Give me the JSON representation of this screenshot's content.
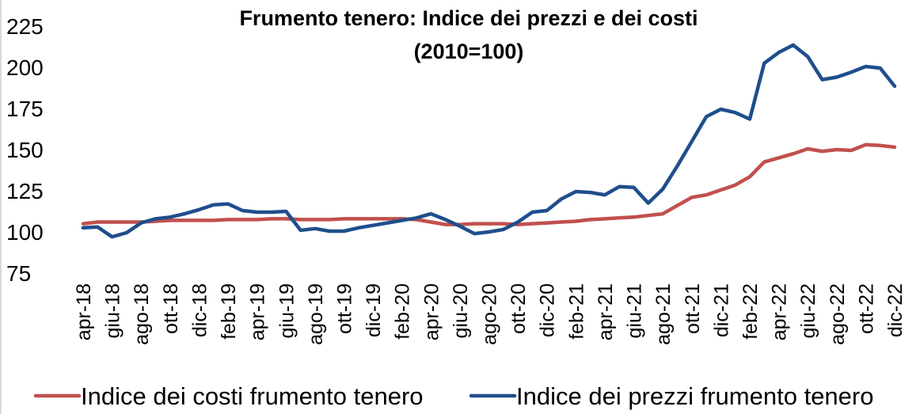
{
  "chart_data": {
    "type": "line",
    "title": "Frumento tenero: Indice dei prezzi e dei costi",
    "subtitle": "(2010=100)",
    "categories": [
      "apr-18",
      null,
      "giu-18",
      null,
      "ago-18",
      null,
      "ott-18",
      null,
      "dic-18",
      null,
      "feb-19",
      null,
      "apr-19",
      null,
      "giu-19",
      null,
      "ago-19",
      null,
      "ott-19",
      null,
      "dic-19",
      null,
      "feb-20",
      null,
      "apr-20",
      null,
      "giu-20",
      null,
      "ago-20",
      null,
      "ott-20",
      null,
      "dic-20",
      null,
      "feb-21",
      null,
      "apr-21",
      null,
      "giu-21",
      null,
      "ago-21",
      null,
      "ott-21",
      null,
      "dic-21",
      null,
      "feb-22",
      null,
      "apr-22",
      null,
      "giu-22",
      null,
      "ago-22",
      null,
      "ott-22",
      null,
      "dic-22"
    ],
    "series": [
      {
        "name": "Indice dei costi frumento tenero",
        "color": "#c0504d",
        "values": [
          105,
          106,
          106,
          106,
          106,
          106.5,
          107,
          107,
          107,
          107,
          107.5,
          107.5,
          107.5,
          108,
          108,
          107.5,
          107.5,
          107.5,
          108,
          108,
          108,
          108,
          108,
          107.5,
          106,
          104.5,
          104.5,
          105,
          105,
          105,
          104.5,
          105,
          105.5,
          106,
          106.5,
          107.5,
          108,
          108.5,
          109,
          110,
          111,
          116,
          121,
          122.5,
          125.5,
          128.5,
          133.5,
          142.5,
          145,
          147.5,
          150.5,
          149,
          150,
          149.5,
          153,
          152.5,
          151.5
        ]
      },
      {
        "name": "Indice dei prezzi frumento tenero",
        "color": "#1f4e8c",
        "values": [
          102.5,
          103,
          97,
          99.5,
          105.5,
          108,
          109,
          111,
          113.5,
          116.5,
          117,
          113,
          112,
          112,
          112.5,
          101,
          102,
          100.5,
          100.5,
          102.5,
          104,
          105.5,
          107,
          108.5,
          111,
          107.5,
          103.5,
          99,
          100,
          101.5,
          106,
          112,
          113,
          120,
          124.5,
          124,
          122.5,
          127.5,
          127,
          117.5,
          126,
          140,
          155,
          170,
          174.5,
          172.5,
          168.5,
          202.5,
          209,
          213.5,
          206.5,
          192.5,
          194,
          197,
          200.5,
          199.5,
          188.5
        ]
      }
    ],
    "ylim": [
      75,
      225
    ],
    "yticks": [
      75,
      100,
      125,
      150,
      175,
      200,
      225
    ],
    "legend": "bottom"
  }
}
